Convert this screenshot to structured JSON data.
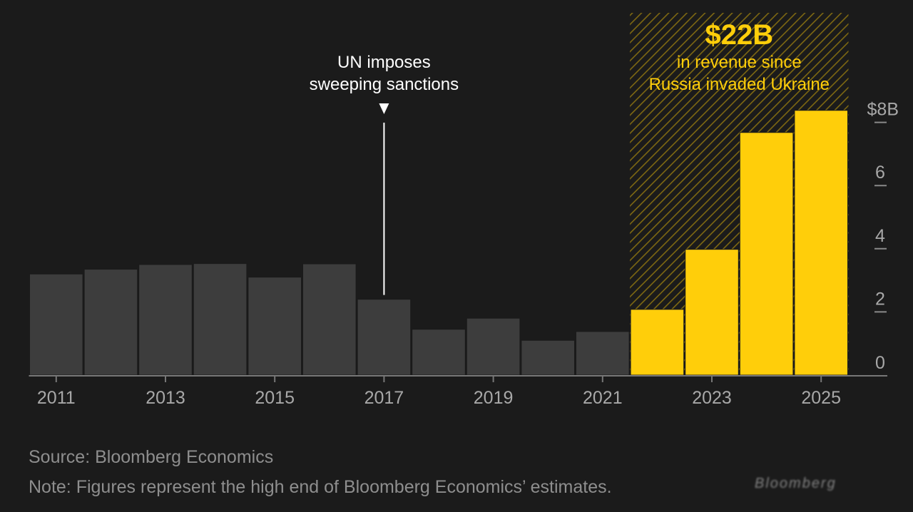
{
  "chart_data": {
    "type": "bar",
    "categories": [
      "2011",
      "2012",
      "2013",
      "2014",
      "2015",
      "2016",
      "2017",
      "2018",
      "2019",
      "2020",
      "2021",
      "2022",
      "2023",
      "2024",
      "2025"
    ],
    "values": [
      3.2,
      3.35,
      3.5,
      3.53,
      3.1,
      3.52,
      2.4,
      1.45,
      1.8,
      1.1,
      1.38,
      2.08,
      3.98,
      7.68,
      8.38
    ],
    "x_tick_labels": [
      "2011",
      "2013",
      "2015",
      "2017",
      "2019",
      "2021",
      "2023",
      "2025"
    ],
    "y_tick_labels": [
      "0",
      "2",
      "4",
      "6",
      "$8B"
    ],
    "y_ticks": [
      0,
      2,
      4,
      6,
      8
    ],
    "ylim": [
      0,
      8.4
    ],
    "highlight_from": "2022",
    "colors": {
      "base": "#3d3d3d",
      "highlight": "#ffce0a",
      "hatch": "#8a7112",
      "axis": "#6a6a6a",
      "tick_text": "#a8a8a8"
    },
    "annotations": {
      "sanctions": {
        "category": "2017",
        "lines": [
          "UN imposes",
          "sweeping sanctions"
        ]
      },
      "revenue": {
        "headline": "$22B",
        "lines": [
          "in revenue since",
          "Russia invaded Ukraine"
        ]
      }
    }
  },
  "footer": {
    "source": "Source: Bloomberg Economics",
    "note": "Note: Figures represent the high end of Bloomberg Economics’ estimates."
  },
  "watermark_text": "Bloomberg"
}
